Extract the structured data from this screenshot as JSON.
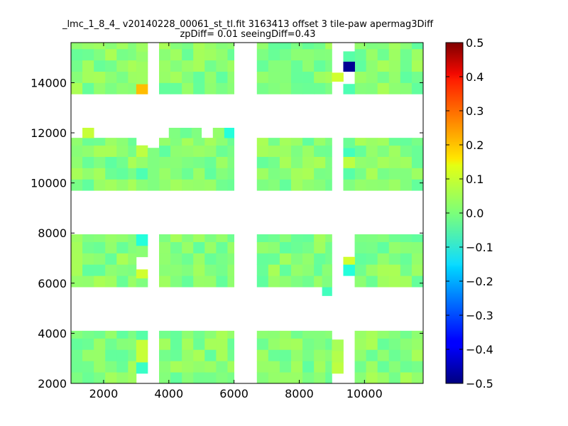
{
  "chart_data": {
    "type": "heatmap",
    "title": "_lmc_1_8_4_ v20140228_00061_st_tl.fit 3163413 offset 3 tile-paw apermag3Diff",
    "subtitle": "zpDiff= 0.01 seeingDiff=0.43",
    "xlabel": "",
    "ylabel": "",
    "xlim": [
      1000,
      11800
    ],
    "ylim": [
      2000,
      15600
    ],
    "xticks": [
      "2000",
      "4000",
      "6000",
      "8000",
      "10000"
    ],
    "yticks": [
      "2000",
      "4000",
      "6000",
      "8000",
      "10000",
      "12000",
      "14000"
    ],
    "colormap": "jet",
    "colorbar": {
      "range": [
        -0.5,
        0.5
      ],
      "ticks": [
        "0.5",
        "0.4",
        "0.3",
        "0.2",
        "0.1",
        "0.0",
        "−0.1",
        "−0.2",
        "−0.3",
        "−0.4",
        "−0.5"
      ]
    },
    "grid": false,
    "cell_size": [
      350,
      450
    ],
    "detectors": [
      {
        "x": [
          1000,
          3000
        ],
        "y": [
          2000,
          4100
        ]
      },
      {
        "x": [
          3700,
          6000
        ],
        "y": [
          2000,
          4100
        ]
      },
      {
        "x": [
          6700,
          9000
        ],
        "y": [
          2000,
          4100
        ]
      },
      {
        "x": [
          9700,
          11800
        ],
        "y": [
          2000,
          4100
        ]
      },
      {
        "x": [
          1000,
          3000
        ],
        "y": [
          5850,
          7950
        ]
      },
      {
        "x": [
          3700,
          6000
        ],
        "y": [
          5850,
          7950
        ]
      },
      {
        "x": [
          6700,
          9000
        ],
        "y": [
          5850,
          7950
        ]
      },
      {
        "x": [
          9700,
          11800
        ],
        "y": [
          5850,
          7950
        ]
      },
      {
        "x": [
          1000,
          3000
        ],
        "y": [
          9700,
          11800
        ]
      },
      {
        "x": [
          3700,
          6000
        ],
        "y": [
          9700,
          11800
        ]
      },
      {
        "x": [
          6700,
          9000
        ],
        "y": [
          9700,
          11800
        ]
      },
      {
        "x": [
          9700,
          11800
        ],
        "y": [
          9700,
          11800
        ]
      },
      {
        "x": [
          1000,
          3000
        ],
        "y": [
          13550,
          15600
        ]
      },
      {
        "x": [
          3700,
          6000
        ],
        "y": [
          13550,
          15600
        ]
      },
      {
        "x": [
          6700,
          9000
        ],
        "y": [
          13550,
          15600
        ]
      },
      {
        "x": [
          9700,
          11800
        ],
        "y": [
          13550,
          15600
        ]
      }
    ],
    "extra_cells": [
      {
        "x": [
          3000,
          3350
        ],
        "y": [
          2400,
          2850
        ],
        "value": -0.07
      },
      {
        "x": [
          3000,
          3350
        ],
        "y": [
          2850,
          3300
        ],
        "value": 0.07
      },
      {
        "x": [
          3000,
          3350
        ],
        "y": [
          3300,
          3750
        ],
        "value": 0.07
      },
      {
        "x": [
          3000,
          3350
        ],
        "y": [
          3750,
          4100
        ],
        "value": -0.04
      },
      {
        "x": [
          3000,
          3350
        ],
        "y": [
          5850,
          6300
        ],
        "value": 0.0
      },
      {
        "x": [
          3000,
          3350
        ],
        "y": [
          6200,
          6550
        ],
        "value": 0.08
      },
      {
        "x": [
          3000,
          3350
        ],
        "y": [
          7050,
          7500
        ],
        "value": 0.01
      },
      {
        "x": [
          3000,
          3350
        ],
        "y": [
          7500,
          7950
        ],
        "value": -0.09
      },
      {
        "x": [
          3000,
          3350
        ],
        "y": [
          9700,
          10150
        ],
        "value": 0.01
      },
      {
        "x": [
          3000,
          3350
        ],
        "y": [
          10150,
          10600
        ],
        "value": -0.05
      },
      {
        "x": [
          3000,
          3350
        ],
        "y": [
          10600,
          11050
        ],
        "value": 0.02
      },
      {
        "x": [
          3000,
          3350
        ],
        "y": [
          11050,
          11500
        ],
        "value": 0.06
      },
      {
        "x": [
          3350,
          3700
        ],
        "y": [
          9700,
          11400
        ],
        "value": 0.0
      },
      {
        "x": [
          3000,
          3350
        ],
        "y": [
          13550,
          13950
        ],
        "value": 0.19
      },
      {
        "x": [
          3000,
          3350
        ],
        "y": [
          13950,
          14400
        ],
        "value": 0.03
      },
      {
        "x": [
          3000,
          3350
        ],
        "y": [
          14400,
          14850
        ],
        "value": 0.03
      },
      {
        "x": [
          3000,
          3350
        ],
        "y": [
          14850,
          15250
        ],
        "value": 0.02
      },
      {
        "x": [
          3000,
          3350
        ],
        "y": [
          15250,
          15600
        ],
        "value": 0.03
      },
      {
        "x": [
          9000,
          9350
        ],
        "y": [
          2400,
          2850
        ],
        "value": 0.06
      },
      {
        "x": [
          9000,
          9350
        ],
        "y": [
          2850,
          3300
        ],
        "value": 0.05
      },
      {
        "x": [
          9000,
          9350
        ],
        "y": [
          3300,
          3750
        ],
        "value": 0.04
      },
      {
        "x": [
          8700,
          9000
        ],
        "y": [
          5500,
          5850
        ],
        "value": -0.06
      },
      {
        "x": [
          8700,
          9000
        ],
        "y": [
          5850,
          6300
        ],
        "value": 0.0
      },
      {
        "x": [
          8700,
          9000
        ],
        "y": [
          6300,
          6750
        ],
        "value": 0.01
      },
      {
        "x": [
          9350,
          9700
        ],
        "y": [
          6300,
          6750
        ],
        "value": -0.09
      },
      {
        "x": [
          9350,
          9700
        ],
        "y": [
          6750,
          7050
        ],
        "value": 0.08
      },
      {
        "x": [
          9350,
          9700
        ],
        "y": [
          9700,
          10150
        ],
        "value": 0.0
      },
      {
        "x": [
          9350,
          9700
        ],
        "y": [
          10150,
          10600
        ],
        "value": -0.04
      },
      {
        "x": [
          9350,
          9700
        ],
        "y": [
          10600,
          11050
        ],
        "value": 0.06
      },
      {
        "x": [
          9350,
          9700
        ],
        "y": [
          11050,
          11400
        ],
        "value": -0.06
      },
      {
        "x": [
          9350,
          9700
        ],
        "y": [
          11400,
          11800
        ],
        "value": -0.02
      },
      {
        "x": [
          9000,
          9350
        ],
        "y": [
          14050,
          14400
        ],
        "value": 0.08
      },
      {
        "x": [
          9350,
          9700
        ],
        "y": [
          13550,
          13950
        ],
        "value": -0.05
      },
      {
        "x": [
          9350,
          9700
        ],
        "y": [
          14450,
          14850
        ],
        "value": -0.48
      },
      {
        "x": [
          9350,
          9700
        ],
        "y": [
          14850,
          15250
        ],
        "value": -0.04
      },
      {
        "x": [
          1350,
          1700
        ],
        "y": [
          11800,
          12200
        ],
        "value": 0.07
      },
      {
        "x": [
          4000,
          4350
        ],
        "y": [
          11800,
          12200
        ],
        "value": 0.0
      },
      {
        "x": [
          4350,
          4700
        ],
        "y": [
          11800,
          12200
        ],
        "value": -0.02
      },
      {
        "x": [
          4700,
          5000
        ],
        "y": [
          11800,
          12200
        ],
        "value": 0.0
      },
      {
        "x": [
          5350,
          5700
        ],
        "y": [
          11800,
          12200
        ],
        "value": 0.02
      },
      {
        "x": [
          5700,
          6000
        ],
        "y": [
          11800,
          12200
        ],
        "value": -0.09
      }
    ],
    "notable_cells": [
      {
        "x": 9500,
        "y": 14600,
        "value": -0.48
      },
      {
        "x": 3180,
        "y": 13750,
        "value": 0.19
      }
    ]
  }
}
